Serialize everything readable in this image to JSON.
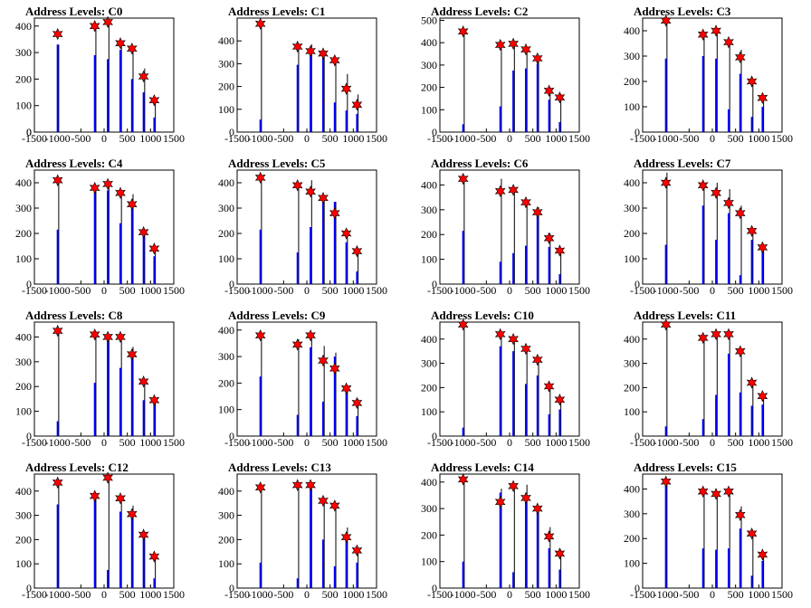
{
  "chart_data": [
    {
      "type": "bar",
      "title": "Address Levels: C0",
      "xticks": [
        "-1500",
        "-1000",
        "-500",
        "0",
        "500",
        "1000",
        "1500"
      ],
      "yticks": [
        "0",
        "100",
        "200",
        "300",
        "400"
      ],
      "xlim": [
        -1500,
        1500
      ],
      "ylim": [
        0,
        430
      ],
      "peaks_x": [
        -1000,
        -200,
        80,
        350,
        600,
        850,
        1080
      ],
      "star_y": [
        370,
        400,
        415,
        335,
        315,
        210,
        120
      ],
      "black_y": [
        330,
        400,
        410,
        340,
        320,
        240,
        130
      ],
      "blue_y": [
        330,
        290,
        275,
        310,
        200,
        150,
        55
      ]
    },
    {
      "type": "bar",
      "title": "Address Levels: C1",
      "xticks": [
        "-1500",
        "-1000",
        "-500",
        "0",
        "500",
        "1000",
        "1500"
      ],
      "yticks": [
        "100",
        "200",
        "300",
        "400"
      ],
      "xlim": [
        -1500,
        1500
      ],
      "ylim": [
        0,
        500
      ],
      "peaks_x": [
        -1000,
        -200,
        80,
        350,
        600,
        850,
        1080
      ],
      "star_y": [
        475,
        375,
        355,
        345,
        315,
        190,
        120
      ],
      "black_y": [
        475,
        380,
        385,
        350,
        320,
        255,
        165
      ],
      "blue_y": [
        55,
        295,
        370,
        335,
        130,
        95,
        80
      ]
    },
    {
      "type": "bar",
      "title": "Address Levels: C2",
      "xticks": [
        "-1500",
        "-1000",
        "-500",
        "0",
        "500",
        "1000",
        "1500"
      ],
      "yticks": [
        "100",
        "200",
        "300",
        "400",
        "500"
      ],
      "xlim": [
        -1500,
        1500
      ],
      "ylim": [
        0,
        510
      ],
      "peaks_x": [
        -1000,
        -200,
        80,
        350,
        600,
        850,
        1080
      ],
      "star_y": [
        450,
        390,
        395,
        370,
        330,
        185,
        155
      ],
      "black_y": [
        450,
        395,
        400,
        375,
        340,
        200,
        170
      ],
      "blue_y": [
        35,
        115,
        275,
        285,
        305,
        145,
        45
      ]
    },
    {
      "type": "bar",
      "title": "Address Levels: C3",
      "xticks": [
        "-1500",
        "-1000",
        "-500",
        "0",
        "500",
        "1000",
        "1500"
      ],
      "yticks": [
        "100",
        "200",
        "300",
        "400"
      ],
      "xlim": [
        -1500,
        1500
      ],
      "ylim": [
        0,
        450
      ],
      "peaks_x": [
        -1000,
        -200,
        80,
        350,
        600,
        850,
        1080
      ],
      "star_y": [
        440,
        385,
        400,
        355,
        295,
        200,
        135
      ],
      "black_y": [
        445,
        395,
        400,
        360,
        325,
        200,
        140
      ],
      "blue_y": [
        290,
        300,
        290,
        90,
        230,
        60,
        100
      ]
    },
    {
      "type": "bar",
      "title": "Address Levels: C4",
      "xticks": [
        "-1500",
        "-1000",
        "-500",
        "0",
        "500",
        "1000",
        "1500"
      ],
      "yticks": [
        "100",
        "200",
        "300",
        "400"
      ],
      "xlim": [
        -1500,
        1500
      ],
      "ylim": [
        0,
        450
      ],
      "peaks_x": [
        -1000,
        -200,
        80,
        350,
        600,
        850,
        1080
      ],
      "star_y": [
        410,
        380,
        395,
        360,
        315,
        205,
        140
      ],
      "black_y": [
        410,
        390,
        400,
        370,
        355,
        215,
        145
      ],
      "blue_y": [
        215,
        370,
        370,
        240,
        300,
        190,
        110
      ]
    },
    {
      "type": "bar",
      "title": "Address Levels: C5",
      "xticks": [
        "-1500",
        "-1000",
        "-500",
        "0",
        "500",
        "1000",
        "1500"
      ],
      "yticks": [
        "100",
        "200",
        "300",
        "400"
      ],
      "xlim": [
        -1500,
        1500
      ],
      "ylim": [
        0,
        450
      ],
      "peaks_x": [
        -1000,
        -200,
        80,
        350,
        600,
        850,
        1080
      ],
      "star_y": [
        420,
        390,
        365,
        340,
        280,
        200,
        130
      ],
      "black_y": [
        420,
        395,
        410,
        350,
        325,
        215,
        135
      ],
      "blue_y": [
        215,
        125,
        225,
        330,
        325,
        165,
        50
      ]
    },
    {
      "type": "bar",
      "title": "Address Levels: C6",
      "xticks": [
        "-1500",
        "-1000",
        "-500",
        "0",
        "500",
        "1000",
        "1500"
      ],
      "yticks": [
        "100",
        "200",
        "300",
        "400"
      ],
      "xlim": [
        -1500,
        1500
      ],
      "ylim": [
        0,
        460
      ],
      "peaks_x": [
        -1000,
        -200,
        80,
        350,
        600,
        850,
        1080
      ],
      "star_y": [
        425,
        375,
        380,
        330,
        290,
        185,
        135
      ],
      "black_y": [
        430,
        425,
        385,
        320,
        310,
        205,
        140
      ],
      "blue_y": [
        215,
        90,
        125,
        155,
        300,
        150,
        40
      ]
    },
    {
      "type": "bar",
      "title": "Address Levels: C7",
      "xticks": [
        "-1500",
        "-1000",
        "-500",
        "0",
        "500",
        "1000",
        "1500"
      ],
      "yticks": [
        "100",
        "200",
        "300",
        "400"
      ],
      "xlim": [
        -1500,
        1500
      ],
      "ylim": [
        0,
        450
      ],
      "peaks_x": [
        -1000,
        -200,
        80,
        350,
        600,
        850,
        1080
      ],
      "star_y": [
        400,
        390,
        360,
        320,
        280,
        210,
        145
      ],
      "black_y": [
        440,
        395,
        400,
        375,
        310,
        215,
        150
      ],
      "blue_y": [
        155,
        310,
        175,
        280,
        35,
        175,
        140
      ]
    },
    {
      "type": "bar",
      "title": "Address Levels: C8",
      "xticks": [
        "-1500",
        "-1000",
        "-500",
        "0",
        "500",
        "1000",
        "1500"
      ],
      "yticks": [
        "100",
        "200",
        "300",
        "400"
      ],
      "xlim": [
        -1500,
        1500
      ],
      "ylim": [
        0,
        460
      ],
      "peaks_x": [
        -1000,
        -200,
        80,
        350,
        600,
        850,
        1080
      ],
      "star_y": [
        425,
        410,
        400,
        400,
        330,
        220,
        145
      ],
      "black_y": [
        430,
        410,
        410,
        405,
        360,
        225,
        150
      ],
      "blue_y": [
        60,
        215,
        395,
        275,
        325,
        145,
        140
      ]
    },
    {
      "type": "bar",
      "title": "Address Levels: C9",
      "xticks": [
        "-1500",
        "-1000",
        "-500",
        "0",
        "500",
        "1000",
        "1500"
      ],
      "yticks": [
        "100",
        "200",
        "300",
        "400"
      ],
      "xlim": [
        -1500,
        1500
      ],
      "ylim": [
        0,
        430
      ],
      "peaks_x": [
        -1000,
        -200,
        80,
        350,
        600,
        850,
        1080
      ],
      "star_y": [
        380,
        345,
        380,
        285,
        255,
        180,
        125
      ],
      "black_y": [
        385,
        365,
        375,
        340,
        315,
        190,
        140
      ],
      "blue_y": [
        225,
        80,
        335,
        130,
        300,
        170,
        75
      ]
    },
    {
      "type": "bar",
      "title": "Address Levels: C10",
      "xticks": [
        "-1500",
        "-1000",
        "-500",
        "0",
        "500",
        "1000",
        "1500"
      ],
      "yticks": [
        "100",
        "200",
        "300",
        "400"
      ],
      "xlim": [
        -1500,
        1500
      ],
      "ylim": [
        0,
        470
      ],
      "peaks_x": [
        -1000,
        -200,
        80,
        350,
        600,
        850,
        1080
      ],
      "star_y": [
        460,
        420,
        400,
        360,
        315,
        205,
        150
      ],
      "black_y": [
        465,
        410,
        405,
        355,
        320,
        215,
        155
      ],
      "blue_y": [
        35,
        370,
        350,
        215,
        250,
        90,
        110
      ]
    },
    {
      "type": "bar",
      "title": "Address Levels: C11",
      "xticks": [
        "-1500",
        "-1000",
        "-500",
        "0",
        "500",
        "1000",
        "1500"
      ],
      "yticks": [
        "100",
        "200",
        "300",
        "400"
      ],
      "xlim": [
        -1500,
        1500
      ],
      "ylim": [
        0,
        470
      ],
      "peaks_x": [
        -1000,
        -200,
        80,
        350,
        600,
        850,
        1080
      ],
      "star_y": [
        460,
        405,
        420,
        420,
        350,
        220,
        165
      ],
      "black_y": [
        460,
        415,
        425,
        430,
        355,
        230,
        175
      ],
      "blue_y": [
        40,
        70,
        170,
        340,
        180,
        125,
        130
      ]
    },
    {
      "type": "bar",
      "title": "Address Levels: C12",
      "xticks": [
        "-1500",
        "-1000",
        "-500",
        "0",
        "500",
        "1000",
        "1500"
      ],
      "yticks": [
        "100",
        "200",
        "300",
        "400"
      ],
      "xlim": [
        -1500,
        1500
      ],
      "ylim": [
        0,
        470
      ],
      "peaks_x": [
        -1000,
        -200,
        80,
        350,
        600,
        850,
        1080
      ],
      "star_y": [
        435,
        380,
        455,
        370,
        305,
        220,
        130
      ],
      "black_y": [
        440,
        390,
        460,
        375,
        340,
        225,
        140
      ],
      "blue_y": [
        345,
        385,
        75,
        315,
        310,
        200,
        40
      ]
    },
    {
      "type": "bar",
      "title": "Address Levels: C13",
      "xticks": [
        "-1500",
        "-1000",
        "-500",
        "0",
        "500",
        "1000",
        "1500"
      ],
      "yticks": [
        "100",
        "200",
        "300",
        "400"
      ],
      "xlim": [
        -1500,
        1500
      ],
      "ylim": [
        0,
        470
      ],
      "peaks_x": [
        -1000,
        -200,
        80,
        350,
        600,
        850,
        1080
      ],
      "star_y": [
        415,
        425,
        425,
        360,
        340,
        210,
        155
      ],
      "black_y": [
        425,
        430,
        425,
        370,
        350,
        250,
        165
      ],
      "blue_y": [
        105,
        40,
        430,
        200,
        90,
        210,
        105
      ]
    },
    {
      "type": "bar",
      "title": "Address Levels: C14",
      "xticks": [
        "-1500",
        "-1000",
        "-500",
        "0",
        "500",
        "1000",
        "1500"
      ],
      "yticks": [
        "100",
        "200",
        "300",
        "400"
      ],
      "xlim": [
        -1500,
        1500
      ],
      "ylim": [
        0,
        430
      ],
      "peaks_x": [
        -1000,
        -200,
        80,
        350,
        600,
        850,
        1080
      ],
      "star_y": [
        410,
        325,
        385,
        340,
        300,
        195,
        130
      ],
      "black_y": [
        415,
        375,
        390,
        390,
        300,
        230,
        145
      ],
      "blue_y": [
        100,
        360,
        60,
        330,
        310,
        150,
        70
      ]
    },
    {
      "type": "bar",
      "title": "Address Levels: C15",
      "xticks": [
        "-1500",
        "-1000",
        "-500",
        "0",
        "500",
        "1000",
        "1500"
      ],
      "yticks": [
        "100",
        "200",
        "300",
        "400"
      ],
      "xlim": [
        -1500,
        1500
      ],
      "ylim": [
        0,
        460
      ],
      "peaks_x": [
        -1000,
        -200,
        80,
        350,
        600,
        850,
        1080
      ],
      "star_y": [
        430,
        390,
        380,
        390,
        295,
        220,
        135
      ],
      "black_y": [
        430,
        395,
        385,
        395,
        330,
        225,
        140
      ],
      "blue_y": [
        420,
        160,
        155,
        160,
        240,
        50,
        110
      ]
    }
  ]
}
